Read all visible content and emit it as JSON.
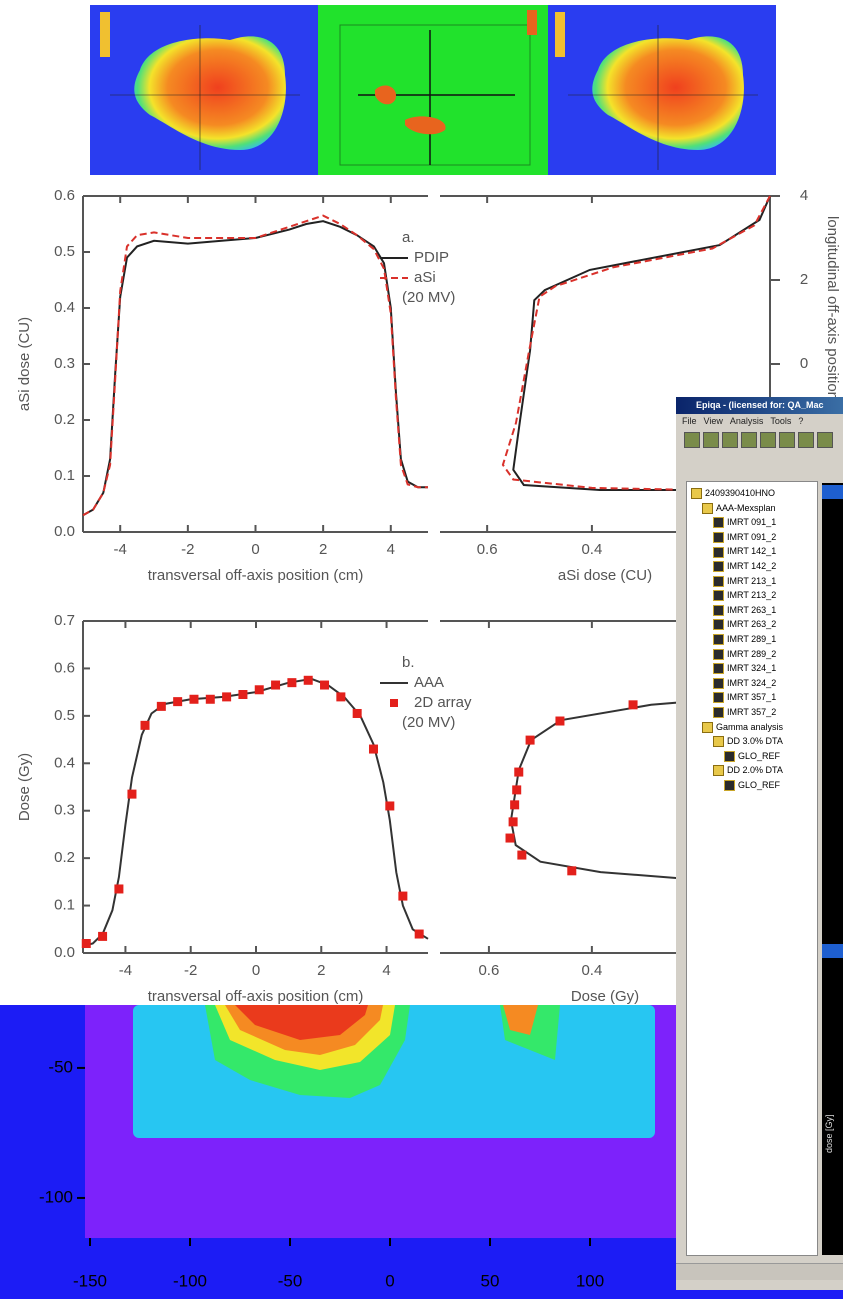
{
  "chart_data": [
    {
      "type": "line",
      "label": "a.",
      "note": "(20 MV)",
      "xlabel": "transversal off-axis position (cm)",
      "ylabel": "aSi dose (CU)",
      "xlim": [
        -5.1,
        5.1
      ],
      "xticks": [
        -4,
        -2,
        0,
        2,
        4
      ],
      "ylim": [
        0,
        0.6
      ],
      "yticks": [
        {
          "value": 0,
          "label": "0.0"
        },
        0.1,
        0.2,
        0.3,
        0.4,
        0.5,
        0.6
      ],
      "side": {
        "xlabel": "aSi dose (CU)",
        "xlim": [
          0.69,
          0.06
        ],
        "xticks": [
          0.6,
          0.4
        ],
        "ylabel": "longitudinal off-axis position (cm)",
        "ylim": [
          -4,
          4
        ],
        "yticks": [
          4,
          2,
          0
        ]
      },
      "series": [
        {
          "name": "PDIP",
          "color": "#222222",
          "style": "solid",
          "x": [
            -5.1,
            -4.8,
            -4.5,
            -4.3,
            -4.15,
            -4.0,
            -3.8,
            -3.5,
            -3,
            -2,
            -1,
            0,
            1,
            1.5,
            2,
            2.5,
            3,
            3.5,
            3.8,
            4.0,
            4.15,
            4.3,
            4.5,
            4.8,
            5.1
          ],
          "values": [
            0.03,
            0.04,
            0.07,
            0.13,
            0.28,
            0.42,
            0.49,
            0.51,
            0.52,
            0.515,
            0.52,
            0.525,
            0.54,
            0.55,
            0.555,
            0.545,
            0.53,
            0.51,
            0.48,
            0.4,
            0.25,
            0.13,
            0.09,
            0.08,
            0.08
          ],
          "side_x": [
            0.06,
            0.08,
            0.156,
            0.404,
            0.49,
            0.51,
            0.518,
            0.537,
            0.55,
            0.53,
            0.385,
            0.194,
            0.06
          ],
          "side_values": [
            4,
            3.43,
            2.83,
            2.24,
            1.76,
            1.52,
            0.33,
            -1.33,
            -2.52,
            -2.88,
            -3.0,
            -3.0,
            -3.05
          ]
        },
        {
          "name": "aSi",
          "color": "#d9312b",
          "style": "dashed",
          "x": [
            -5.1,
            -4.8,
            -4.5,
            -4.3,
            -4.15,
            -4.0,
            -3.8,
            -3.5,
            -3,
            -2,
            -1,
            0,
            1,
            1.5,
            2,
            2.5,
            3,
            3.5,
            3.8,
            4.0,
            4.15,
            4.3,
            4.5,
            4.8,
            5.1
          ],
          "values": [
            0.03,
            0.04,
            0.07,
            0.12,
            0.27,
            0.43,
            0.51,
            0.53,
            0.535,
            0.525,
            0.525,
            0.525,
            0.545,
            0.555,
            0.565,
            0.55,
            0.53,
            0.505,
            0.47,
            0.39,
            0.24,
            0.12,
            0.085,
            0.08,
            0.08
          ],
          "side_x": [
            0.06,
            0.09,
            0.17,
            0.36,
            0.47,
            0.5,
            0.52,
            0.545,
            0.57,
            0.55,
            0.4,
            0.2,
            0.06
          ],
          "side_values": [
            4,
            3.3,
            2.75,
            2.3,
            1.85,
            1.6,
            0.3,
            -1.4,
            -2.4,
            -2.75,
            -2.95,
            -3.0,
            -3.1
          ]
        }
      ]
    },
    {
      "type": "line",
      "label": "b.",
      "note": "(20 MV)",
      "xlabel": "transversal off-axis position (cm)",
      "ylabel": "Dose (Gy)",
      "xlim": [
        -5.3,
        5.27
      ],
      "xticks": [
        -4,
        -2,
        0,
        2,
        4
      ],
      "ylim": [
        0,
        0.7
      ],
      "yticks": [
        {
          "value": 0,
          "label": "0.0"
        },
        0.1,
        0.2,
        0.3,
        0.4,
        0.5,
        0.6,
        0.7
      ],
      "side": {
        "xlabel": "Dose (Gy)",
        "xlim": [
          0.695,
          0.054
        ],
        "xticks": [
          0.6,
          0.4
        ],
        "ylim": [
          -4,
          4
        ]
      },
      "series": [
        {
          "name": "AAA",
          "color": "#333333",
          "style": "solid",
          "x": [
            -5.3,
            -5.0,
            -4.7,
            -4.4,
            -4.2,
            -4.0,
            -3.8,
            -3.5,
            -3.2,
            -2.8,
            -2,
            -1,
            0,
            1,
            1.7,
            2.2,
            2.7,
            3.2,
            3.6,
            3.9,
            4.1,
            4.3,
            4.5,
            4.8,
            5.27
          ],
          "values": [
            0.015,
            0.02,
            0.04,
            0.09,
            0.16,
            0.27,
            0.37,
            0.46,
            0.505,
            0.525,
            0.535,
            0.54,
            0.55,
            0.57,
            0.578,
            0.565,
            0.54,
            0.5,
            0.44,
            0.36,
            0.28,
            0.17,
            0.1,
            0.05,
            0.03
          ],
          "side_x": [
            0.052,
            0.285,
            0.46,
            0.518,
            0.542,
            0.557,
            0.548,
            0.5,
            0.383,
            0.188,
            0.052
          ],
          "side_values": [
            2.22,
            1.98,
            1.61,
            1.13,
            0.41,
            -0.8,
            -1.4,
            -1.8,
            -2.05,
            -2.24,
            -2.31
          ]
        },
        {
          "name": "2D array",
          "color": "#e3201b",
          "style": "marker",
          "x": [
            -5.2,
            -4.7,
            -4.2,
            -3.8,
            -3.4,
            -2.9,
            -2.4,
            -1.9,
            -1.4,
            -0.9,
            -0.4,
            0.1,
            0.6,
            1.1,
            1.6,
            2.1,
            2.6,
            3.1,
            3.6,
            4.1,
            4.5,
            5.0
          ],
          "values": [
            0.02,
            0.035,
            0.135,
            0.335,
            0.48,
            0.52,
            0.53,
            0.535,
            0.535,
            0.54,
            0.545,
            0.555,
            0.565,
            0.57,
            0.575,
            0.565,
            0.54,
            0.505,
            0.43,
            0.31,
            0.12,
            0.04
          ],
          "side_x": [
            0.32,
            0.462,
            0.52,
            0.542,
            0.546,
            0.55,
            0.553,
            0.559,
            0.536,
            0.439
          ],
          "side_values": [
            1.98,
            1.59,
            1.13,
            0.36,
            -0.07,
            -0.43,
            -0.84,
            -1.23,
            -1.64,
            -2.02
          ]
        }
      ]
    },
    {
      "type": "heatmap",
      "xlim": [
        -152.5,
        226.5
      ],
      "xticks": [
        -150,
        -100,
        -50,
        0,
        50,
        100
      ],
      "ylim": [
        -25.8,
        -115.4
      ],
      "yticks": [
        -50,
        -100
      ]
    }
  ],
  "window": {
    "title": "Epiqa - (licensed for: QA_Mac",
    "menu": [
      "File",
      "View",
      "Analysis",
      "Tools",
      "?"
    ],
    "tree": {
      "label": "2409390410HNO",
      "children": [
        {
          "label": "AAA-Mexsplan",
          "children": [
            {
              "label": "IMRT 091_1"
            },
            {
              "label": "IMRT 091_2"
            },
            {
              "label": "IMRT 142_1"
            },
            {
              "label": "IMRT 142_2"
            },
            {
              "label": "IMRT 213_1"
            },
            {
              "label": "IMRT 213_2"
            },
            {
              "label": "IMRT 263_1"
            },
            {
              "label": "IMRT 263_2"
            },
            {
              "label": "IMRT 289_1"
            },
            {
              "label": "IMRT 289_2"
            },
            {
              "label": "IMRT 324_1"
            },
            {
              "label": "IMRT 324_2"
            },
            {
              "label": "IMRT 357_1"
            },
            {
              "label": "IMRT 357_2"
            }
          ]
        },
        {
          "label": "Gamma analysis",
          "children": [
            {
              "label": "DD 3.0% DTA",
              "children": [
                {
                  "label": "GLO_REF"
                }
              ]
            },
            {
              "label": "DD 2.0% DTA",
              "children": [
                {
                  "label": "GLO_REF"
                }
              ]
            }
          ]
        }
      ]
    },
    "plot_ylabel": "dose [Gy]"
  }
}
